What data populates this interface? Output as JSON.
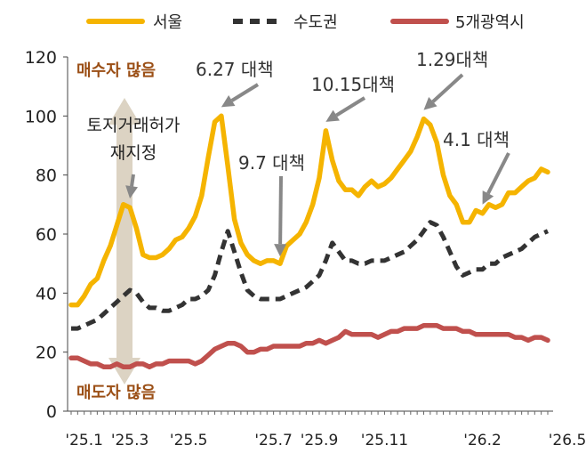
{
  "chart_data": {
    "type": "line",
    "ylim": [
      0,
      120
    ],
    "yticks": [
      0,
      20,
      40,
      60,
      80,
      100,
      120
    ],
    "x_tick_labels": [
      "'25.1",
      "'25.3",
      "'25.5",
      "'25.7",
      "'25.9",
      "'25.11",
      "'26.2",
      "'26.5"
    ],
    "x_tick_positions": [
      2,
      9,
      18,
      31,
      38,
      48,
      63,
      76
    ],
    "grid": false,
    "legend_placement": "top",
    "series": [
      {
        "name": "서울",
        "color": "#f5b400",
        "style": "solid",
        "values": [
          36,
          36,
          39,
          43,
          45,
          51,
          56,
          63,
          70,
          69,
          62,
          53,
          52,
          52,
          53,
          55,
          58,
          59,
          62,
          66,
          73,
          86,
          98,
          100,
          83,
          65,
          57,
          53,
          51,
          50,
          51,
          51,
          50,
          56,
          58,
          60,
          64,
          70,
          79,
          95,
          85,
          78,
          75,
          75,
          73,
          76,
          78,
          76,
          77,
          79,
          82,
          85,
          88,
          93,
          99,
          97,
          91,
          80,
          73,
          70,
          64,
          64,
          68,
          67,
          70,
          69,
          70,
          74,
          74,
          76,
          78,
          79,
          82,
          81
        ]
      },
      {
        "name": "수도권",
        "color": "#333333",
        "style": "dashed",
        "values": [
          28,
          28,
          29,
          30,
          31,
          33,
          35,
          37,
          39,
          41,
          40,
          37,
          35,
          35,
          34,
          34,
          35,
          36,
          38,
          38,
          39,
          41,
          46,
          54,
          61,
          54,
          47,
          41,
          39,
          38,
          38,
          38,
          38,
          39,
          40,
          41,
          42,
          44,
          46,
          51,
          57,
          54,
          51,
          51,
          50,
          50,
          51,
          51,
          51,
          52,
          53,
          54,
          56,
          58,
          61,
          64,
          63,
          59,
          54,
          49,
          46,
          47,
          48,
          48,
          50,
          50,
          52,
          53,
          54,
          55,
          57,
          59,
          60,
          61
        ]
      },
      {
        "name": "5개광역시",
        "color": "#c0504d",
        "style": "solid",
        "values": [
          18,
          18,
          17,
          16,
          16,
          15,
          15,
          16,
          15,
          15,
          16,
          16,
          15,
          16,
          16,
          17,
          17,
          17,
          17,
          16,
          17,
          19,
          21,
          22,
          23,
          23,
          22,
          20,
          20,
          21,
          21,
          22,
          22,
          22,
          22,
          22,
          23,
          23,
          24,
          23,
          24,
          25,
          27,
          26,
          26,
          26,
          26,
          25,
          26,
          27,
          27,
          28,
          28,
          28,
          29,
          29,
          29,
          28,
          28,
          28,
          27,
          27,
          26,
          26,
          26,
          26,
          26,
          26,
          25,
          25,
          24,
          25,
          25,
          24
        ]
      }
    ],
    "annotations": {
      "buy_side": "매수자 많음",
      "sell_side": "매도자 많음",
      "land_permit_line1": "토지거래허가",
      "land_permit_line2": "재지정",
      "measure_0627": "6.27 대책",
      "measure_0907": "9.7 대책",
      "measure_1015": "10.15대책",
      "measure_0129": "1.29대책",
      "measure_0401": "4.1 대책"
    },
    "annotation_anchor_index": {
      "land_permit": 9,
      "measure_0627": 23,
      "measure_0907": 32,
      "measure_1015": 39,
      "measure_0129": 54,
      "measure_0401": 63
    }
  },
  "colors": {
    "arrow_bar": "#dcd3c3",
    "arrow_pointer": "#888888",
    "axis": "#444444"
  }
}
